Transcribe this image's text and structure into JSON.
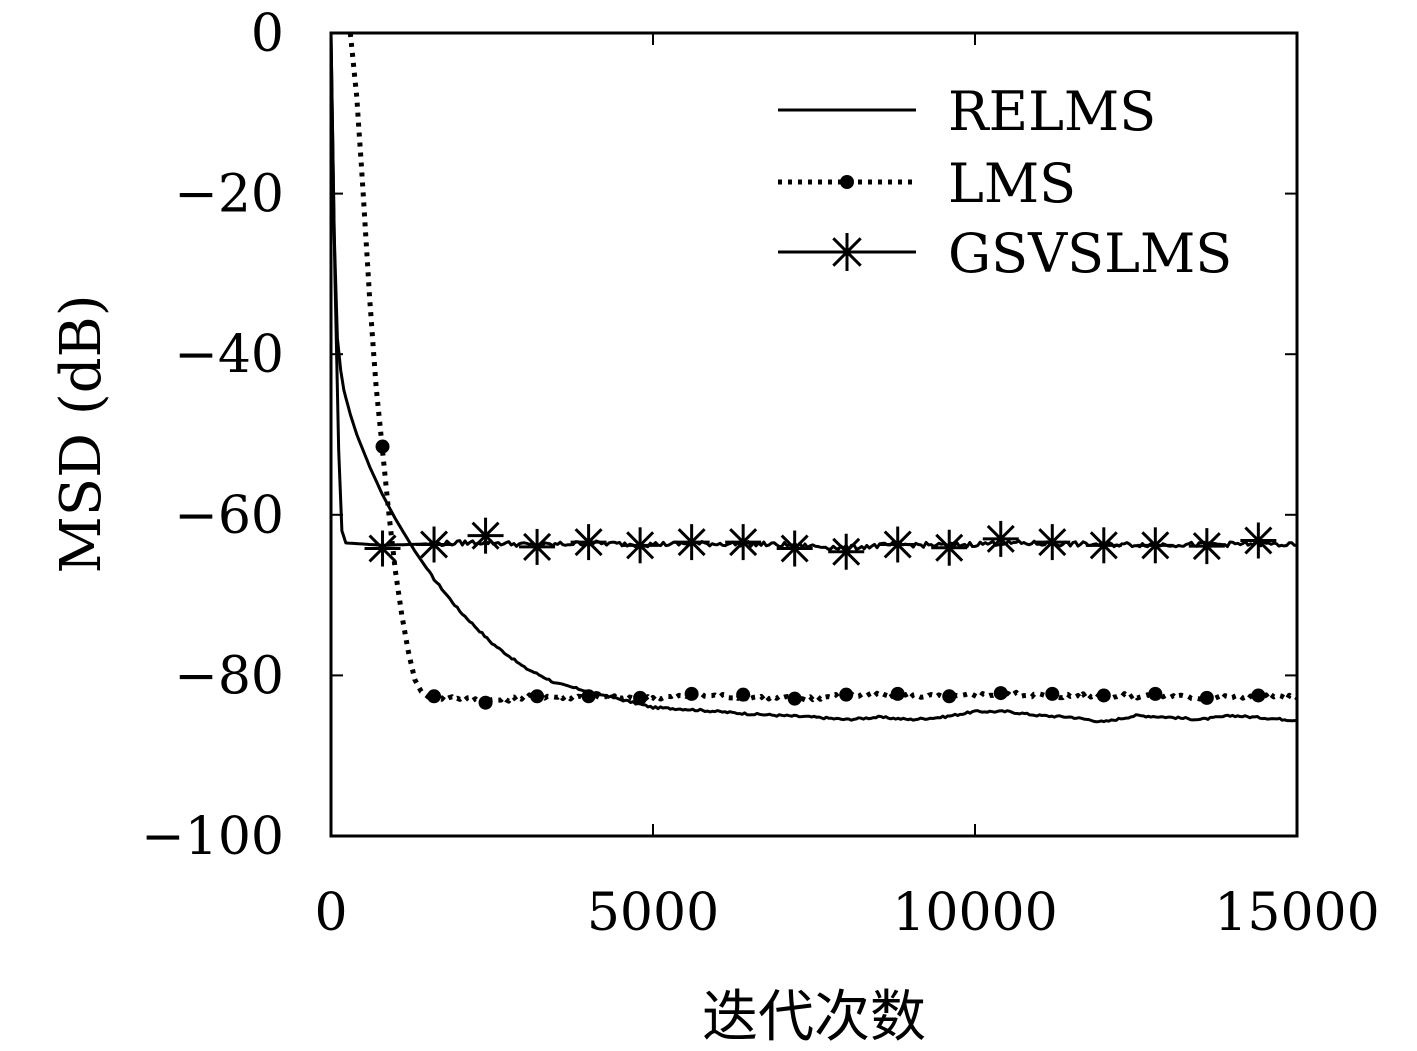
{
  "chart_data": {
    "type": "line",
    "title": "",
    "xlabel": "迭代次数",
    "ylabel": "MSD (dB)",
    "xlim": [
      0,
      15000
    ],
    "ylim": [
      -100,
      0
    ],
    "xticks": [
      0,
      5000,
      10000,
      15000
    ],
    "xtick_labels": [
      "0",
      "5000",
      "10000",
      "15000"
    ],
    "yticks": [
      0,
      -20,
      -40,
      -60,
      -80,
      -100
    ],
    "ytick_labels": [
      "0",
      "−20",
      "−40",
      "−60",
      "−80",
      "−100"
    ],
    "grid": false,
    "legend_position": "top-right",
    "series": [
      {
        "name": "RELMS",
        "line_style": "solid",
        "marker": "none",
        "color": "#000000",
        "x": [
          0,
          50,
          100,
          150,
          200,
          300,
          400,
          600,
          800,
          1000,
          1300,
          1600,
          2000,
          2500,
          3000,
          3500,
          4000,
          4500,
          5000,
          5500,
          6000,
          6500,
          7000,
          7500,
          8000,
          8500,
          9000,
          9500,
          10000,
          10500,
          11000,
          11500,
          12000,
          12500,
          13000,
          13500,
          14000,
          14500,
          15000
        ],
        "y": [
          0,
          -25,
          -38,
          -42,
          -44.5,
          -47.5,
          -50,
          -54,
          -57.5,
          -60.5,
          -64.5,
          -68,
          -72,
          -76,
          -79,
          -81,
          -82,
          -83,
          -84,
          -84.2,
          -84.5,
          -84.8,
          -85,
          -85.2,
          -85.5,
          -85.2,
          -85.5,
          -85.2,
          -84.5,
          -84.5,
          -85,
          -85.2,
          -85.8,
          -85,
          -85.2,
          -85.5,
          -85,
          -85.3,
          -85.6
        ]
      },
      {
        "name": "LMS",
        "line_style": "dotted",
        "marker": "dot",
        "color": "#000000",
        "x": [
          300,
          400,
          500,
          600,
          700,
          800,
          900,
          1000,
          1100,
          1200,
          1300,
          1400,
          1500,
          1600,
          2000,
          2400,
          2800,
          3200,
          4000,
          4800,
          5600,
          6400,
          7200,
          8000,
          8800,
          9600,
          10400,
          11200,
          12000,
          12800,
          13600,
          14400,
          15000
        ],
        "y": [
          0,
          -8,
          -20,
          -33,
          -44,
          -52,
          -60,
          -67,
          -72.5,
          -77,
          -80.5,
          -82,
          -82.6,
          -82.7,
          -82.8,
          -83.2,
          -82.9,
          -82.6,
          -82.7,
          -82.9,
          -82.5,
          -82.6,
          -82.9,
          -82.5,
          -82.4,
          -82.7,
          -82.3,
          -82.5,
          -82.6,
          -82.5,
          -82.8,
          -82.6,
          -82.8
        ]
      },
      {
        "name": "GSVSLMS",
        "line_style": "solid",
        "marker": "asterisk",
        "color": "#000000",
        "x": [
          0,
          60,
          120,
          170,
          230,
          800,
          1600,
          2400,
          3200,
          4000,
          4800,
          5600,
          6400,
          7200,
          8000,
          8800,
          9600,
          10400,
          11200,
          12000,
          12800,
          13600,
          14400,
          15000
        ],
        "y": [
          0,
          -30,
          -52,
          -62,
          -63.5,
          -63.8,
          -63.6,
          -63.4,
          -63.8,
          -63.5,
          -63.7,
          -63.6,
          -63.6,
          -63.8,
          -64.1,
          -63.7,
          -63.8,
          -63.5,
          -63.6,
          -63.7,
          -63.7,
          -63.7,
          -63.6,
          -63.8
        ]
      }
    ],
    "markers": {
      "LMS": {
        "x": [
          800,
          1600,
          2400,
          3200,
          4000,
          4800,
          5600,
          6400,
          7200,
          8000,
          8800,
          9600,
          10400,
          11200,
          12000,
          12800,
          13600,
          14400
        ],
        "y": [
          -51.5,
          -82.6,
          -83.4,
          -82.6,
          -82.6,
          -82.8,
          -82.3,
          -82.4,
          -82.9,
          -82.4,
          -82.3,
          -82.6,
          -82.2,
          -82.3,
          -82.5,
          -82.3,
          -82.8,
          -82.5
        ]
      },
      "GSVSLMS": {
        "x": [
          800,
          1600,
          2400,
          3200,
          4000,
          4800,
          5600,
          6400,
          7200,
          8000,
          8800,
          9600,
          10400,
          11200,
          12000,
          12800,
          13600,
          14400
        ],
        "y": [
          -64.2,
          -63.7,
          -62.6,
          -64.0,
          -63.4,
          -63.8,
          -63.4,
          -63.4,
          -64.2,
          -64.6,
          -63.7,
          -64.1,
          -63.0,
          -63.4,
          -63.8,
          -63.8,
          -63.9,
          -63.2
        ]
      }
    }
  }
}
